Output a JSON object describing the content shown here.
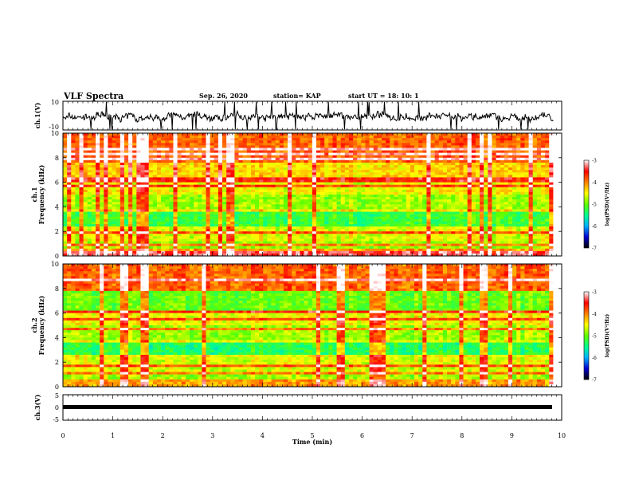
{
  "header": {
    "title": "VLF Spectra",
    "date": "Sep. 26, 2020",
    "station": "station= KAP",
    "start_ut": "start  UT =   18: 10: 1"
  },
  "chart_data": [
    {
      "type": "line",
      "panel": "ch1-waveform",
      "ylabel": "ch.1(V)",
      "ylim": [
        -10,
        10
      ],
      "tick_labels": [
        "10",
        "-10"
      ],
      "description_values": "noisy waveform fluctuating roughly between -3 and 3 V, centered near -1 V",
      "xlim": [
        0,
        9.83
      ]
    },
    {
      "type": "heatmap",
      "panel": "ch1-spectrogram",
      "ylabel": "ch.1\nFrequency (kHz)",
      "ylim": [
        0,
        10
      ],
      "yticks": [
        0,
        2,
        4,
        6,
        8,
        10
      ],
      "xlim": [
        0,
        9.83
      ],
      "colorbar": {
        "label": "log(PSD)(V²/Hz)",
        "range": [
          -7,
          -3
        ],
        "ticks": [
          -7,
          -6,
          -5,
          -4,
          -3
        ],
        "colors": [
          "#000000",
          "#0000d0",
          "#00b0ff",
          "#00ff90",
          "#60ff00",
          "#ffff00",
          "#ff8000",
          "#ff0000",
          "#ffffff"
        ]
      }
    },
    {
      "type": "heatmap",
      "panel": "ch2-spectrogram",
      "ylabel": "ch.2\nFrequency (kHz)",
      "ylim": [
        0,
        10
      ],
      "yticks": [
        0,
        2,
        4,
        6,
        8,
        10
      ],
      "xlim": [
        0,
        9.83
      ],
      "colorbar": {
        "label": "log(PSD)(V²/Hz)",
        "range": [
          -7,
          -3
        ],
        "ticks": [
          -7,
          -6,
          -5,
          -4,
          -3
        ]
      }
    },
    {
      "type": "line",
      "panel": "ch3-waveform",
      "ylabel": "ch.3(V)",
      "ylim": [
        -5,
        5
      ],
      "yticks": [
        -5,
        0,
        5
      ],
      "tick_labels": [
        "5",
        "0",
        "-5"
      ],
      "value_constant": -0.9,
      "xlim": [
        0,
        9.83
      ]
    }
  ],
  "xaxis": {
    "label": "Time (min)",
    "range": [
      0,
      10
    ],
    "ticks": [
      "0",
      "1",
      "2",
      "3",
      "4",
      "5",
      "6",
      "7",
      "8",
      "9",
      "10"
    ]
  },
  "colors": {
    "low": "#0000d0",
    "mid": "#00ff90",
    "high": "#ff0000",
    "saturate": "#ffffff"
  }
}
